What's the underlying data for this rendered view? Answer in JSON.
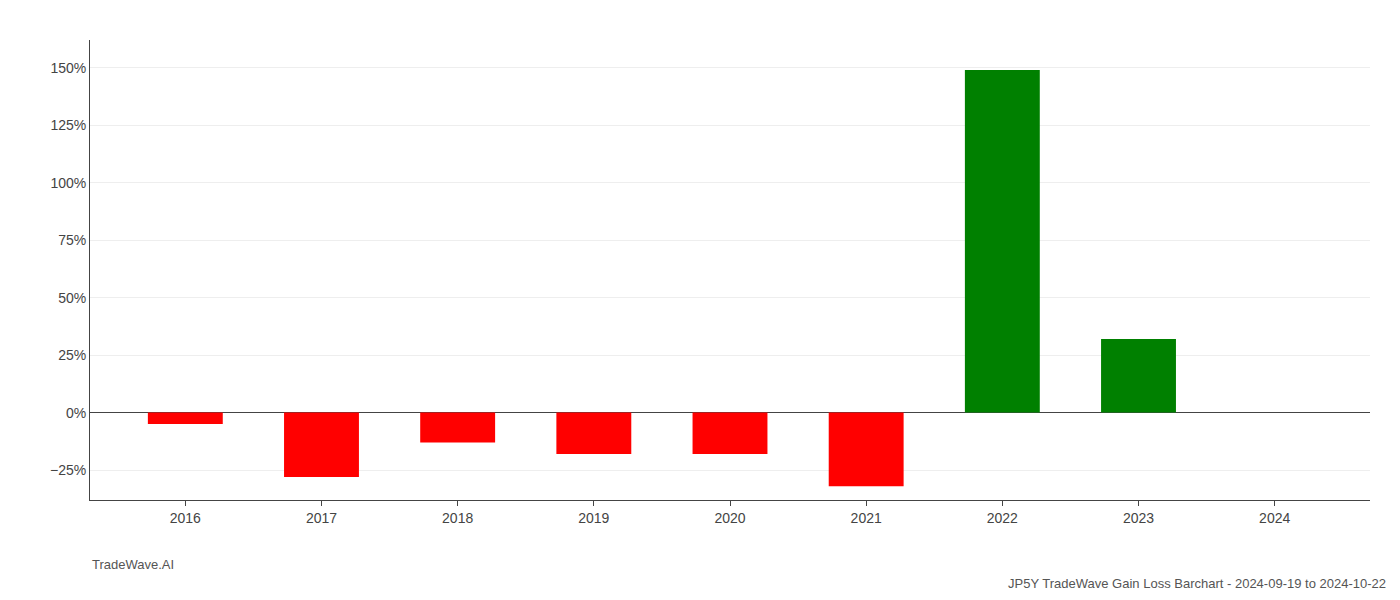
{
  "chart_data": {
    "type": "bar",
    "title": "JP5Y TradeWave Gain Loss Barchart - 2024-09-19 to 2024-10-22",
    "annotations": [
      "TradeWave.AI"
    ],
    "x": [
      2016,
      2017,
      2018,
      2019,
      2020,
      2021,
      2022,
      2023,
      2024
    ],
    "values": [
      -5.0,
      -28.0,
      -13.0,
      -18.0,
      -18.0,
      -32.0,
      149.0,
      32.0,
      0.0
    ],
    "colors": [
      "#ff0000",
      "#ff0000",
      "#ff0000",
      "#ff0000",
      "#ff0000",
      "#ff0000",
      "#008000",
      "#008000",
      "#008000"
    ],
    "xlim": [
      2015.3,
      2024.7
    ],
    "xticks": [
      2016,
      2017,
      2018,
      2019,
      2020,
      2021,
      2022,
      2023,
      2024
    ],
    "ylim": [
      -38,
      162
    ],
    "yticks": [
      {
        "value": -25,
        "label": "−25%"
      },
      {
        "value": 0,
        "label": "0%"
      },
      {
        "value": 25,
        "label": "25%"
      },
      {
        "value": 50,
        "label": "50%"
      },
      {
        "value": 75,
        "label": "75%"
      },
      {
        "value": 100,
        "label": "100%"
      },
      {
        "value": 125,
        "label": "125%"
      },
      {
        "value": 150,
        "label": "150%"
      }
    ],
    "grid": true
  }
}
